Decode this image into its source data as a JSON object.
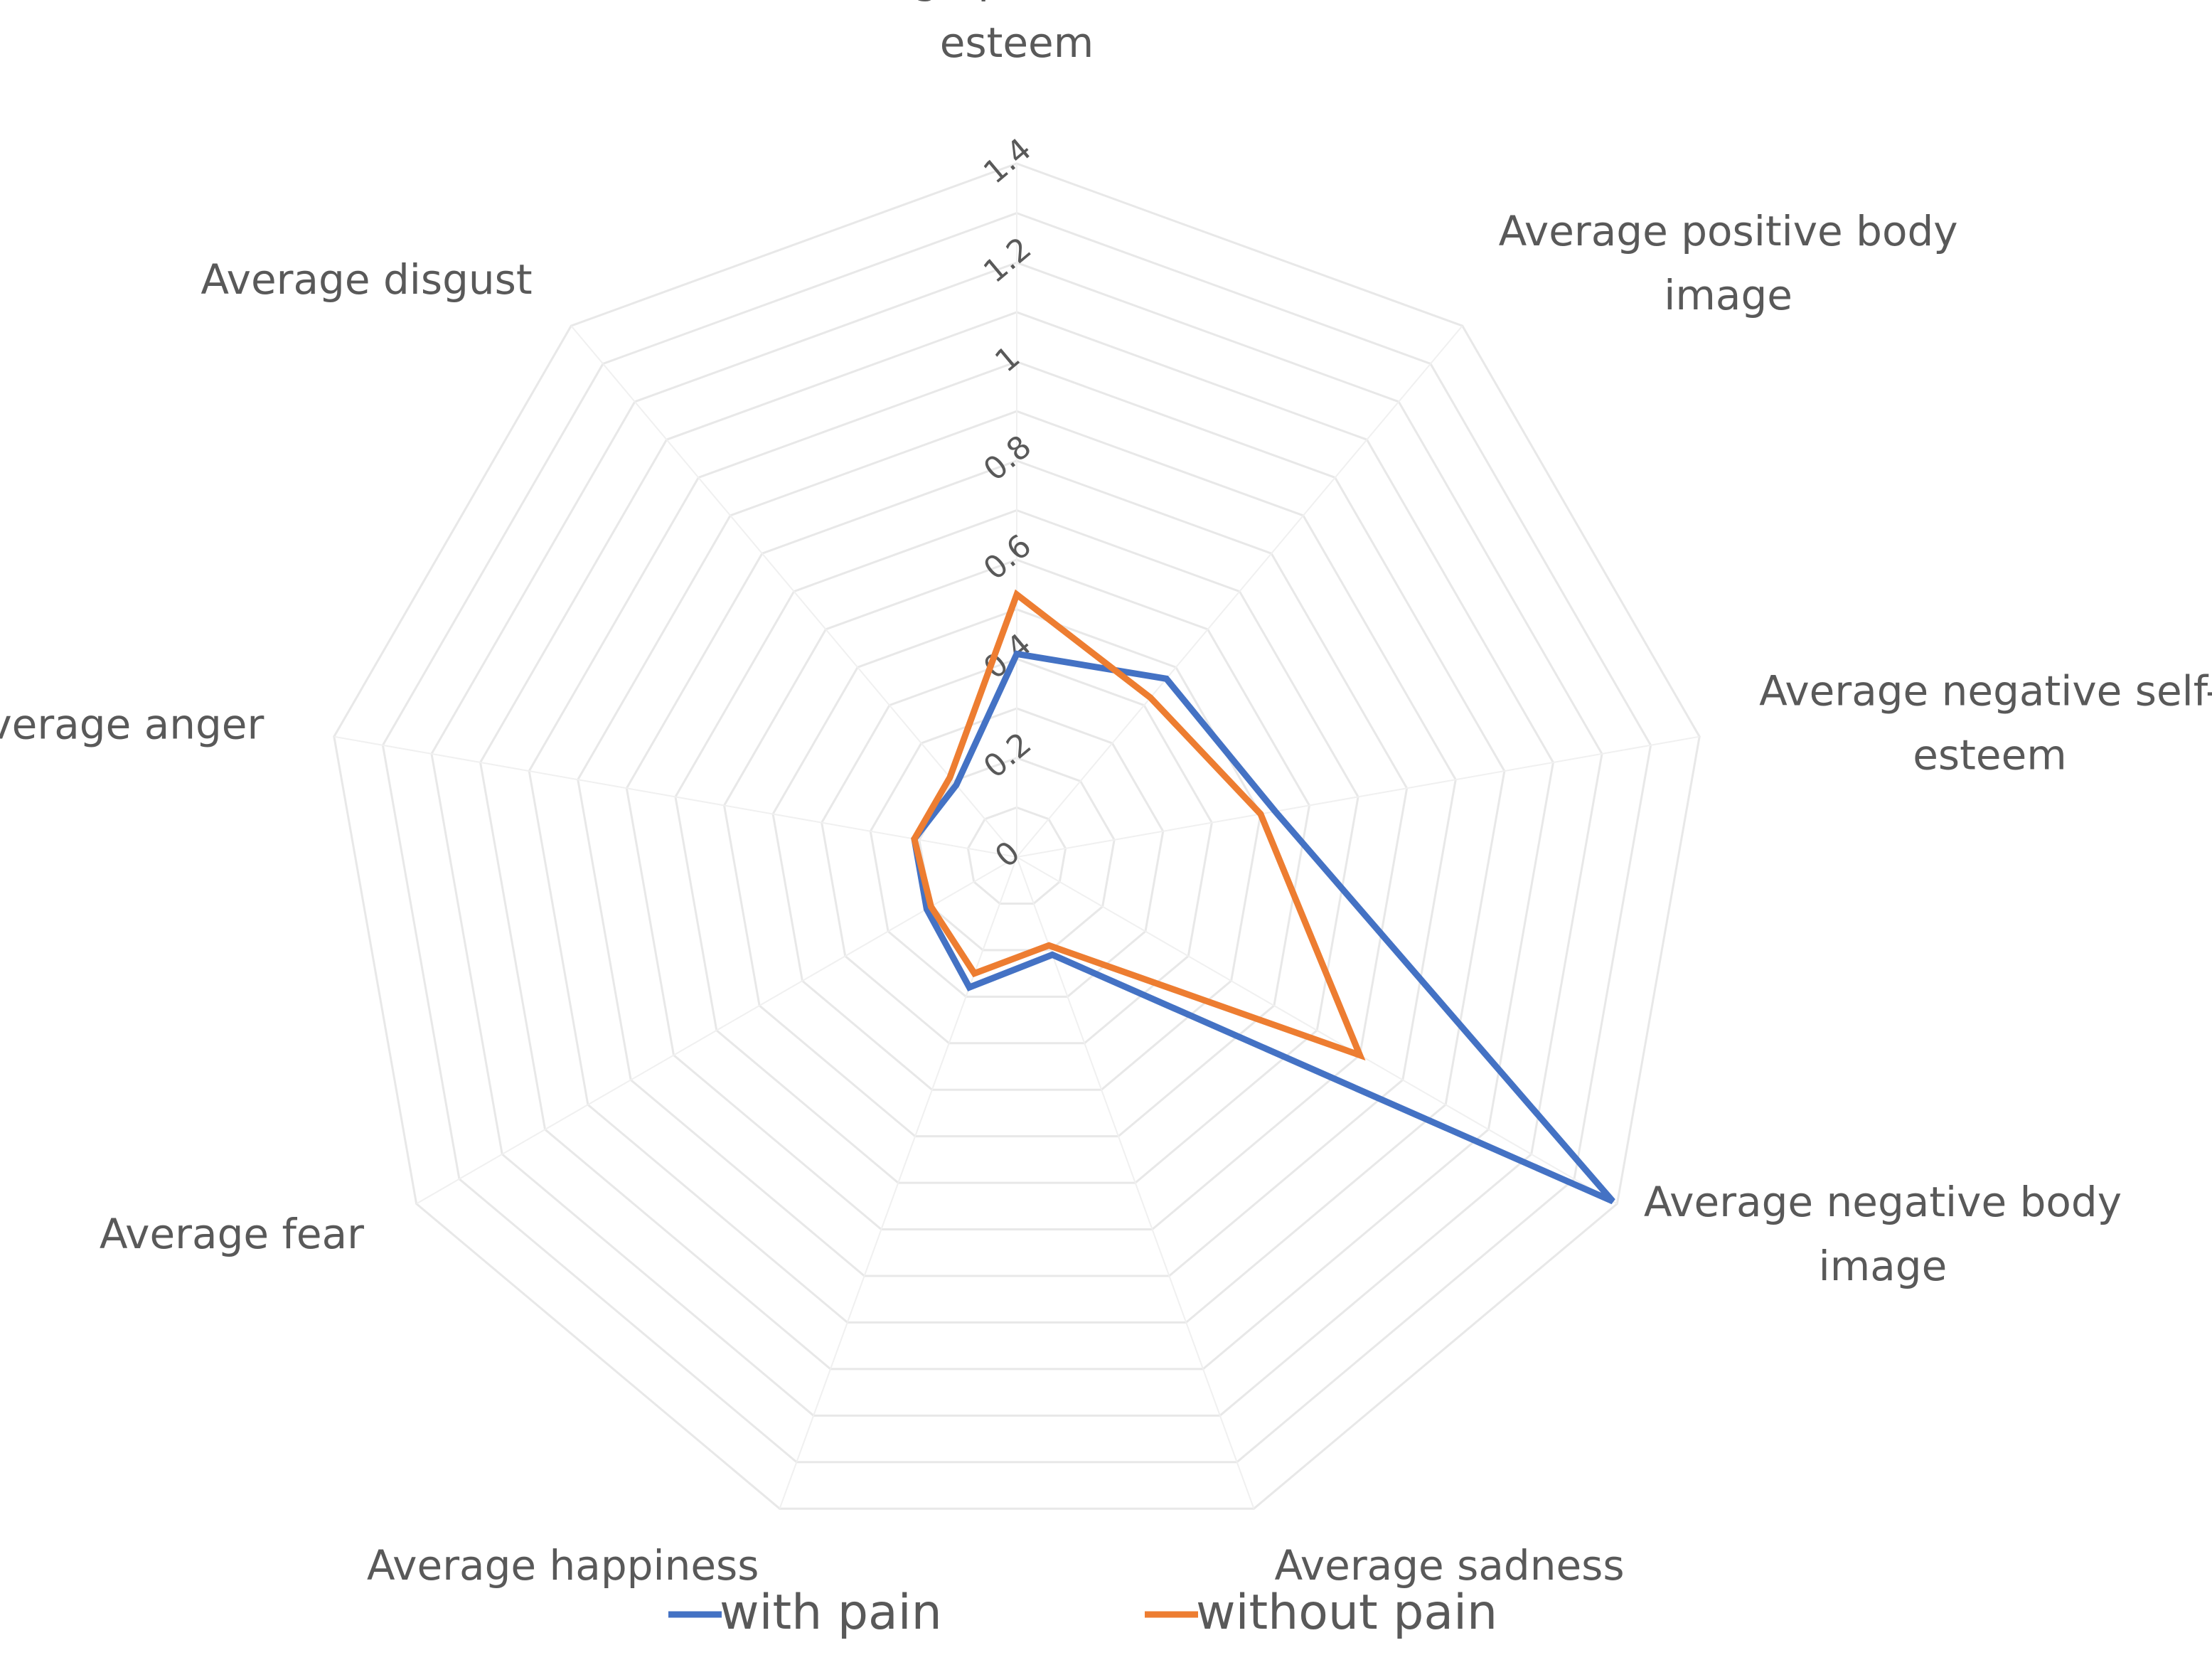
{
  "chart_data": {
    "type": "radar",
    "title": "",
    "axes": [
      [
        "Average positive self-",
        "esteem"
      ],
      [
        "Average positive body",
        "image"
      ],
      [
        "Average negative self-",
        "esteem"
      ],
      [
        "Average negative body",
        "image"
      ],
      [
        "Average sadness"
      ],
      [
        "Average happiness"
      ],
      [
        "Average fear"
      ],
      [
        "Average anger"
      ],
      [
        "Average disgust"
      ]
    ],
    "ticks": [
      "0",
      "0.2",
      "0.4",
      "0.6",
      "0.8",
      "1",
      "1.2",
      "1.4"
    ],
    "range": [
      0,
      1.4
    ],
    "series": [
      {
        "name": "with pain",
        "color": "#4472c4",
        "values": [
          0.41,
          0.47,
          0.53,
          1.39,
          0.21,
          0.28,
          0.21,
          0.21,
          0.19
        ]
      },
      {
        "name": "without pain",
        "color": "#ed7d31",
        "values": [
          0.53,
          0.42,
          0.5,
          0.8,
          0.19,
          0.25,
          0.2,
          0.21,
          0.21
        ]
      }
    ],
    "legend": [
      {
        "label": "with pain",
        "color": "#4472c4"
      },
      {
        "label": "without pain",
        "color": "#ed7d31"
      }
    ],
    "legend_position": "bottom"
  }
}
